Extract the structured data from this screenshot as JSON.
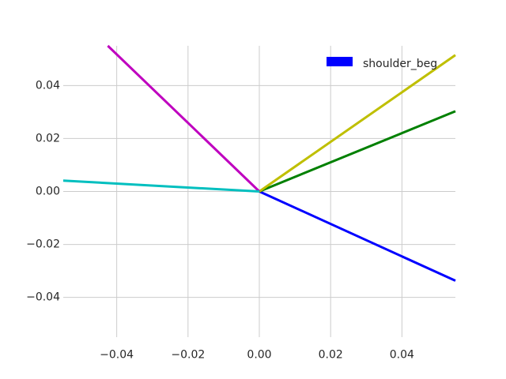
{
  "chart_data": {
    "type": "line",
    "title": "",
    "xlabel": "",
    "ylabel": "",
    "xlim": [
      -0.055,
      0.055
    ],
    "ylim": [
      -0.055,
      0.055
    ],
    "xticks": [
      -0.04,
      -0.02,
      0.0,
      0.02,
      0.04
    ],
    "yticks": [
      -0.04,
      -0.02,
      0.0,
      0.02,
      0.04
    ],
    "xtick_labels": [
      "−0.04",
      "−0.02",
      "0.00",
      "0.02",
      "0.04"
    ],
    "ytick_labels": [
      "−0.04",
      "−0.02",
      "0.00",
      "0.02",
      "0.04"
    ],
    "grid": true,
    "legend": {
      "placement": "top-right",
      "entries": [
        {
          "label": "shoulder_beg",
          "color": "#0000ff"
        }
      ]
    },
    "series": [
      {
        "color": "#0000ff",
        "points": [
          [
            0.0,
            0.0
          ],
          [
            0.055,
            -0.0337
          ]
        ]
      },
      {
        "color": "#008000",
        "points": [
          [
            0.0,
            0.0
          ],
          [
            0.055,
            0.0303
          ]
        ]
      },
      {
        "color": "#bfbf00",
        "points": [
          [
            0.0,
            0.0
          ],
          [
            0.055,
            0.0515
          ]
        ]
      },
      {
        "color": "#bf00bf",
        "points": [
          [
            0.0,
            0.0
          ],
          [
            -0.0425,
            0.055
          ]
        ]
      },
      {
        "color": "#00bfbf",
        "points": [
          [
            0.0,
            0.0
          ],
          [
            -0.055,
            0.0041
          ]
        ]
      }
    ]
  }
}
